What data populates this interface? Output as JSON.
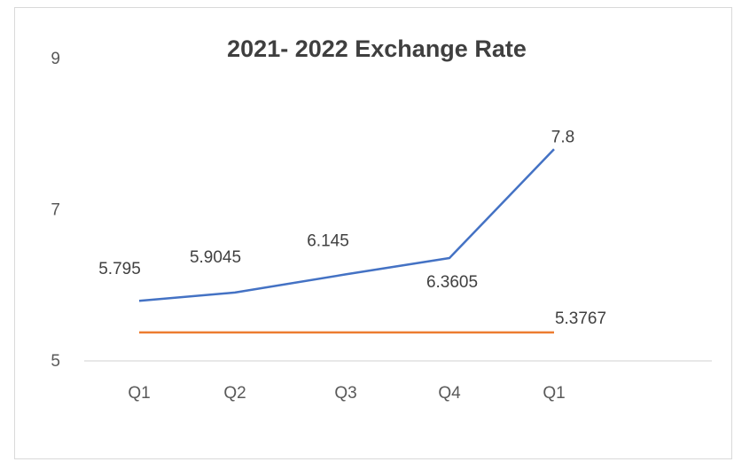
{
  "chart_data": {
    "type": "line",
    "title": "2021- 2022 Exchange Rate",
    "categories": [
      "Q1",
      "Q2",
      "Q3",
      "Q4",
      "Q1"
    ],
    "ylim": [
      5,
      9
    ],
    "y_ticks": [
      "5",
      "7",
      "9"
    ],
    "grid": false,
    "series": [
      {
        "values": [
          5.795,
          5.9045,
          6.145,
          6.3605,
          7.8
        ],
        "labels": [
          "5.795",
          "5.9045",
          "6.145",
          "6.3605",
          "7.8"
        ],
        "color": "#4472c4"
      },
      {
        "values": [
          5.3767,
          5.3767,
          5.3767,
          5.3767,
          5.3767
        ],
        "labels": [
          "",
          "",
          "",
          "",
          "5.3767"
        ],
        "color": "#ed7d31"
      }
    ]
  }
}
